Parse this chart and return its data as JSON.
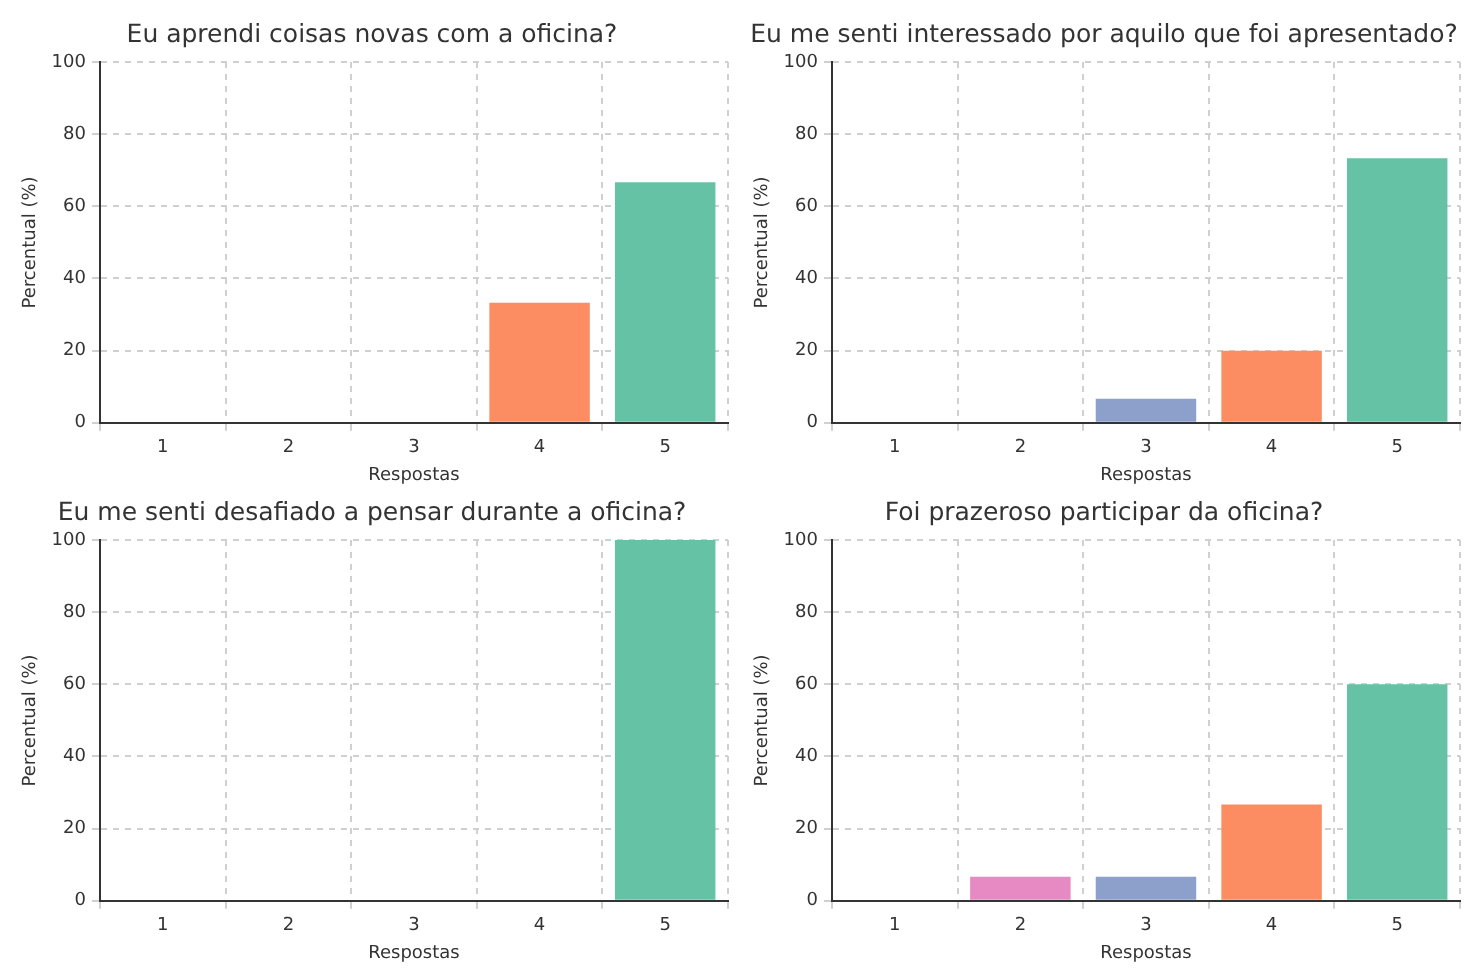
{
  "chart_data": [
    {
      "type": "bar",
      "title": "Eu aprendi coisas novas com a oficina?",
      "xlabel": "Respostas",
      "ylabel": "Percentual (%)",
      "categories": [
        "1",
        "2",
        "3",
        "4",
        "5"
      ],
      "values": [
        0,
        0,
        0,
        33.3,
        66.7
      ],
      "colors": [
        "#a6d854",
        "#e78ac3",
        "#8da0cb",
        "#fc8d62",
        "#66c2a5"
      ],
      "ylim": [
        0,
        100
      ],
      "yticks": [
        0,
        20,
        40,
        60,
        80,
        100
      ],
      "grid": true
    },
    {
      "type": "bar",
      "title": "Eu me senti interessado por aquilo que foi apresentado?",
      "xlabel": "Respostas",
      "ylabel": "Percentual (%)",
      "categories": [
        "1",
        "2",
        "3",
        "4",
        "5"
      ],
      "values": [
        0,
        0,
        6.7,
        20,
        73.3
      ],
      "colors": [
        "#a6d854",
        "#e78ac3",
        "#8da0cb",
        "#fc8d62",
        "#66c2a5"
      ],
      "ylim": [
        0,
        100
      ],
      "yticks": [
        0,
        20,
        40,
        60,
        80,
        100
      ],
      "grid": true
    },
    {
      "type": "bar",
      "title": "Eu me senti desafiado a pensar durante a oficina?",
      "xlabel": "Respostas",
      "ylabel": "Percentual (%)",
      "categories": [
        "1",
        "2",
        "3",
        "4",
        "5"
      ],
      "values": [
        0,
        0,
        0,
        0,
        100
      ],
      "colors": [
        "#a6d854",
        "#e78ac3",
        "#8da0cb",
        "#fc8d62",
        "#66c2a5"
      ],
      "ylim": [
        0,
        100
      ],
      "yticks": [
        0,
        20,
        40,
        60,
        80,
        100
      ],
      "grid": true
    },
    {
      "type": "bar",
      "title": "Foi prazeroso participar da oficina?",
      "xlabel": "Respostas",
      "ylabel": "Percentual (%)",
      "categories": [
        "1",
        "2",
        "3",
        "4",
        "5"
      ],
      "values": [
        0,
        6.7,
        6.7,
        26.7,
        60
      ],
      "colors": [
        "#a6d854",
        "#e78ac3",
        "#8da0cb",
        "#fc8d62",
        "#66c2a5"
      ],
      "ylim": [
        0,
        100
      ],
      "yticks": [
        0,
        20,
        40,
        60,
        80,
        100
      ],
      "grid": true
    }
  ]
}
